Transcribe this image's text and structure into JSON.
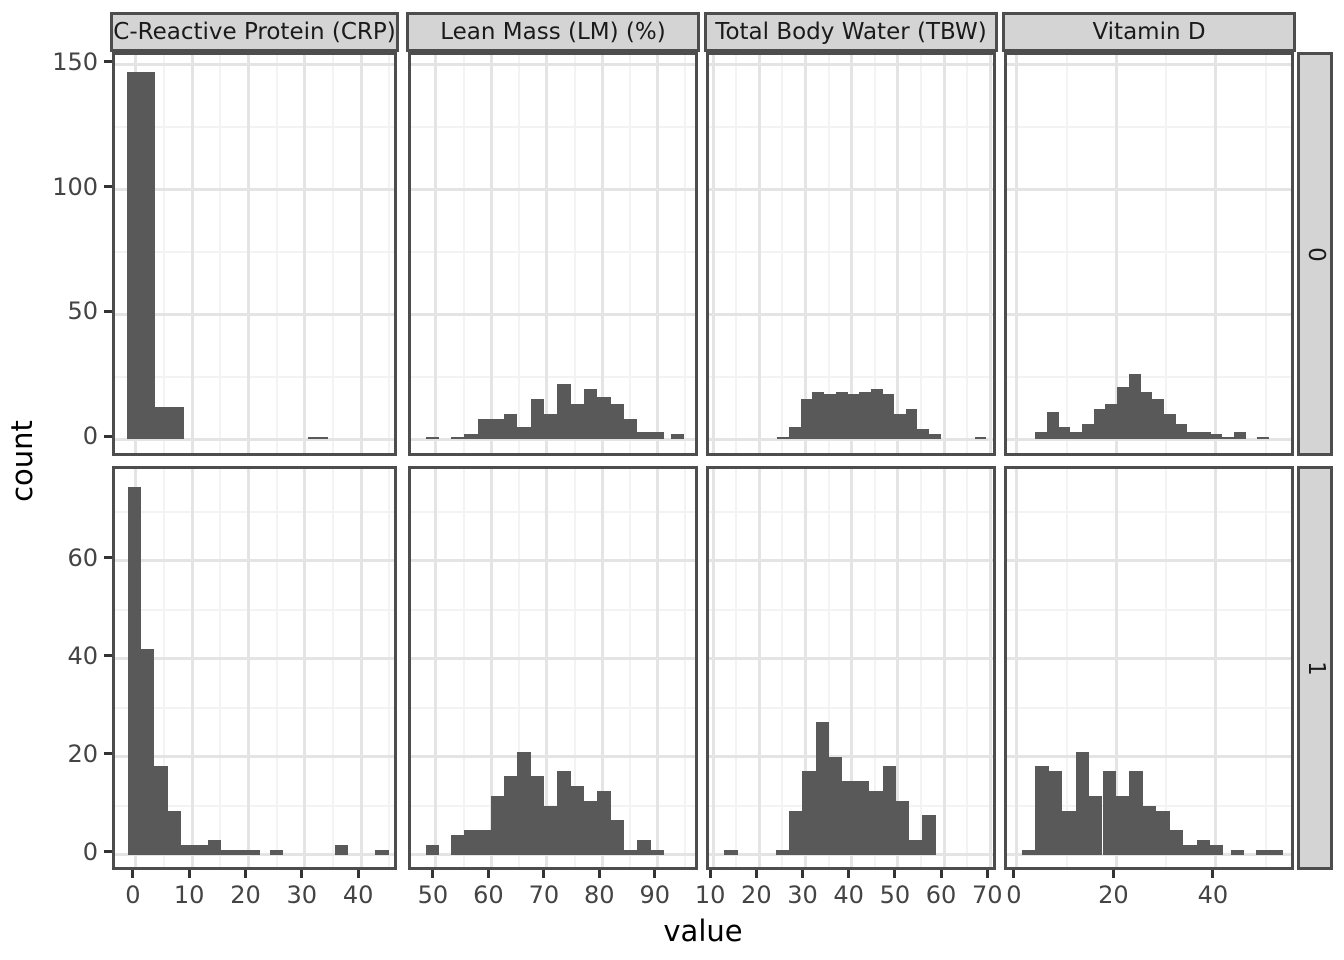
{
  "figure": {
    "xlab": "value",
    "ylab": "count",
    "colors": {
      "bar": "#595959",
      "panel_border": "#4D4D4D",
      "strip_fill": "#D4D4D4",
      "strip_border": "#4D4D4D",
      "strip_text": "#1A1A1A",
      "grid_major": "#E4E4E4",
      "grid_minor": "#F3F3F3",
      "tick_mark": "#333333",
      "tick_label": "#444444",
      "axis_title": "#000000",
      "background": "#FFFFFF"
    }
  },
  "chart_data": {
    "type": "bar",
    "subtype": "faceted-histogram-grid",
    "x_title": "value",
    "y_title": "count",
    "legend": "none",
    "grid": "on",
    "columns": [
      {
        "key": "crp",
        "label": "C-Reactive Protein (CRP)",
        "x_domain": [
          -3.7,
          46.9
        ],
        "x_ticks": [
          0,
          10,
          20,
          30,
          40
        ],
        "x_minor": [
          5,
          15,
          25,
          35,
          45
        ]
      },
      {
        "key": "lean-mass",
        "label": "Lean Mass (LM) (%)",
        "x_domain": [
          45.5,
          97.8
        ],
        "x_ticks": [
          50,
          60,
          70,
          80,
          90
        ],
        "x_minor": [
          55,
          65,
          75,
          85,
          95
        ]
      },
      {
        "key": "tbw",
        "label": "Total Body Water (TBW)",
        "x_domain": [
          9.1,
          71.9
        ],
        "x_ticks": [
          10,
          20,
          30,
          40,
          50,
          60,
          70
        ],
        "x_minor": [
          15,
          25,
          35,
          45,
          55,
          65
        ]
      },
      {
        "key": "vitamin-d",
        "label": "Vitamin D",
        "x_domain": [
          -2.0,
          56.3
        ],
        "x_ticks": [
          0,
          20,
          40
        ],
        "x_minor": [
          10,
          30,
          50
        ]
      }
    ],
    "rows": [
      {
        "key": "0",
        "label": "0",
        "y_domain": [
          -8,
          154
        ],
        "y_ticks": [
          0,
          50,
          100,
          150
        ],
        "y_minor": [
          25,
          75,
          125
        ]
      },
      {
        "key": "1",
        "label": "1",
        "y_domain": [
          -3.75,
          78.75
        ],
        "y_ticks": [
          0,
          20,
          40,
          60
        ],
        "y_minor": [
          10,
          30,
          50,
          70
        ]
      }
    ],
    "panels": [
      {
        "col": 0,
        "row": 0,
        "bins": [
          [
            -1.5,
            3.4,
            147
          ],
          [
            3.4,
            8.6,
            13
          ],
          [
            30.5,
            34.1,
            1
          ]
        ]
      },
      {
        "col": 1,
        "row": 0,
        "bins": [
          [
            48.2,
            50.6,
            1
          ],
          [
            52.7,
            55.1,
            1
          ],
          [
            55.1,
            57.5,
            2
          ],
          [
            57.5,
            59.9,
            8
          ],
          [
            59.9,
            62.3,
            8
          ],
          [
            62.3,
            64.7,
            10
          ],
          [
            64.7,
            67.1,
            5
          ],
          [
            67.1,
            69.5,
            16
          ],
          [
            69.5,
            71.9,
            10
          ],
          [
            71.9,
            74.3,
            22
          ],
          [
            74.3,
            76.7,
            14
          ],
          [
            76.7,
            79.1,
            20
          ],
          [
            79.1,
            81.5,
            17
          ],
          [
            81.5,
            83.9,
            14
          ],
          [
            83.9,
            86.3,
            8
          ],
          [
            86.3,
            88.7,
            3
          ],
          [
            88.7,
            91.1,
            3
          ],
          [
            92.4,
            94.8,
            2
          ]
        ]
      },
      {
        "col": 2,
        "row": 0,
        "bins": [
          [
            23.9,
            26.5,
            1
          ],
          [
            26.5,
            29.0,
            5
          ],
          [
            29.0,
            31.5,
            16
          ],
          [
            31.5,
            34.0,
            19
          ],
          [
            34.0,
            36.6,
            18
          ],
          [
            36.6,
            39.1,
            19
          ],
          [
            39.1,
            41.6,
            18
          ],
          [
            41.6,
            44.1,
            19
          ],
          [
            44.1,
            46.7,
            20
          ],
          [
            46.7,
            49.2,
            18
          ],
          [
            49.2,
            51.7,
            10
          ],
          [
            51.7,
            54.2,
            12
          ],
          [
            54.2,
            56.8,
            4
          ],
          [
            56.8,
            59.3,
            2
          ],
          [
            66.6,
            69.1,
            1
          ]
        ]
      },
      {
        "col": 3,
        "row": 0,
        "bins": [
          [
            3.7,
            6.05,
            3
          ],
          [
            6.05,
            8.4,
            11
          ],
          [
            8.4,
            10.75,
            5
          ],
          [
            10.75,
            13.1,
            3
          ],
          [
            13.1,
            15.45,
            6
          ],
          [
            15.45,
            17.8,
            12
          ],
          [
            17.8,
            20.15,
            14
          ],
          [
            20.15,
            22.5,
            21
          ],
          [
            22.5,
            24.85,
            26
          ],
          [
            24.85,
            27.2,
            19
          ],
          [
            27.2,
            29.55,
            16
          ],
          [
            29.55,
            31.9,
            10
          ],
          [
            31.9,
            34.25,
            6
          ],
          [
            34.25,
            36.6,
            3
          ],
          [
            36.6,
            38.95,
            3
          ],
          [
            38.95,
            41.3,
            2
          ],
          [
            41.3,
            43.65,
            1
          ],
          [
            43.65,
            46.0,
            3
          ],
          [
            48.35,
            50.7,
            1
          ]
        ]
      },
      {
        "col": 0,
        "row": 1,
        "bins": [
          [
            -1.4,
            1.0,
            75
          ],
          [
            1.0,
            3.3,
            42
          ],
          [
            3.3,
            5.7,
            18
          ],
          [
            5.7,
            8.0,
            9
          ],
          [
            8.0,
            10.4,
            2
          ],
          [
            10.4,
            12.8,
            2
          ],
          [
            12.8,
            15.1,
            3
          ],
          [
            15.1,
            17.5,
            1
          ],
          [
            17.5,
            19.8,
            1
          ],
          [
            19.8,
            22.1,
            1
          ],
          [
            23.8,
            26.2,
            1
          ],
          [
            35.3,
            37.7,
            2
          ],
          [
            42.5,
            44.9,
            1
          ]
        ]
      },
      {
        "col": 1,
        "row": 1,
        "bins": [
          [
            48.2,
            50.6,
            2
          ],
          [
            52.7,
            55.1,
            4
          ],
          [
            55.1,
            57.5,
            5
          ],
          [
            57.5,
            59.9,
            5
          ],
          [
            59.9,
            62.3,
            12
          ],
          [
            62.3,
            64.7,
            16
          ],
          [
            64.7,
            67.1,
            21
          ],
          [
            67.1,
            69.5,
            16
          ],
          [
            69.5,
            71.9,
            10
          ],
          [
            71.9,
            74.3,
            17
          ],
          [
            74.3,
            76.7,
            14
          ],
          [
            76.7,
            79.1,
            11
          ],
          [
            79.1,
            81.5,
            13
          ],
          [
            81.5,
            83.9,
            7
          ],
          [
            83.9,
            86.3,
            1
          ],
          [
            86.3,
            88.7,
            3
          ],
          [
            88.7,
            91.1,
            1
          ]
        ]
      },
      {
        "col": 2,
        "row": 1,
        "bins": [
          [
            12.4,
            15.3,
            1
          ],
          [
            23.6,
            26.5,
            1
          ],
          [
            26.5,
            29.3,
            9
          ],
          [
            29.3,
            32.2,
            17
          ],
          [
            32.2,
            35.1,
            27
          ],
          [
            35.1,
            38.0,
            20
          ],
          [
            38.0,
            40.9,
            15
          ],
          [
            40.9,
            43.8,
            15
          ],
          [
            43.8,
            46.7,
            13
          ],
          [
            46.7,
            49.5,
            18
          ],
          [
            49.5,
            52.4,
            11
          ],
          [
            52.4,
            55.3,
            3
          ],
          [
            55.3,
            58.2,
            8
          ]
        ]
      },
      {
        "col": 3,
        "row": 1,
        "bins": [
          [
            1.0,
            3.7,
            1
          ],
          [
            3.7,
            6.4,
            18
          ],
          [
            6.4,
            9.1,
            17
          ],
          [
            9.1,
            11.8,
            9
          ],
          [
            11.8,
            14.5,
            21
          ],
          [
            14.5,
            17.2,
            12
          ],
          [
            17.2,
            19.9,
            17
          ],
          [
            19.9,
            22.6,
            12
          ],
          [
            22.6,
            25.3,
            17
          ],
          [
            25.3,
            28.0,
            10
          ],
          [
            28.0,
            30.7,
            9
          ],
          [
            30.7,
            33.4,
            5
          ],
          [
            33.4,
            36.1,
            2
          ],
          [
            36.1,
            38.8,
            3
          ],
          [
            38.8,
            41.5,
            2
          ],
          [
            43.0,
            45.7,
            1
          ],
          [
            48.0,
            53.4,
            1
          ]
        ]
      }
    ]
  }
}
